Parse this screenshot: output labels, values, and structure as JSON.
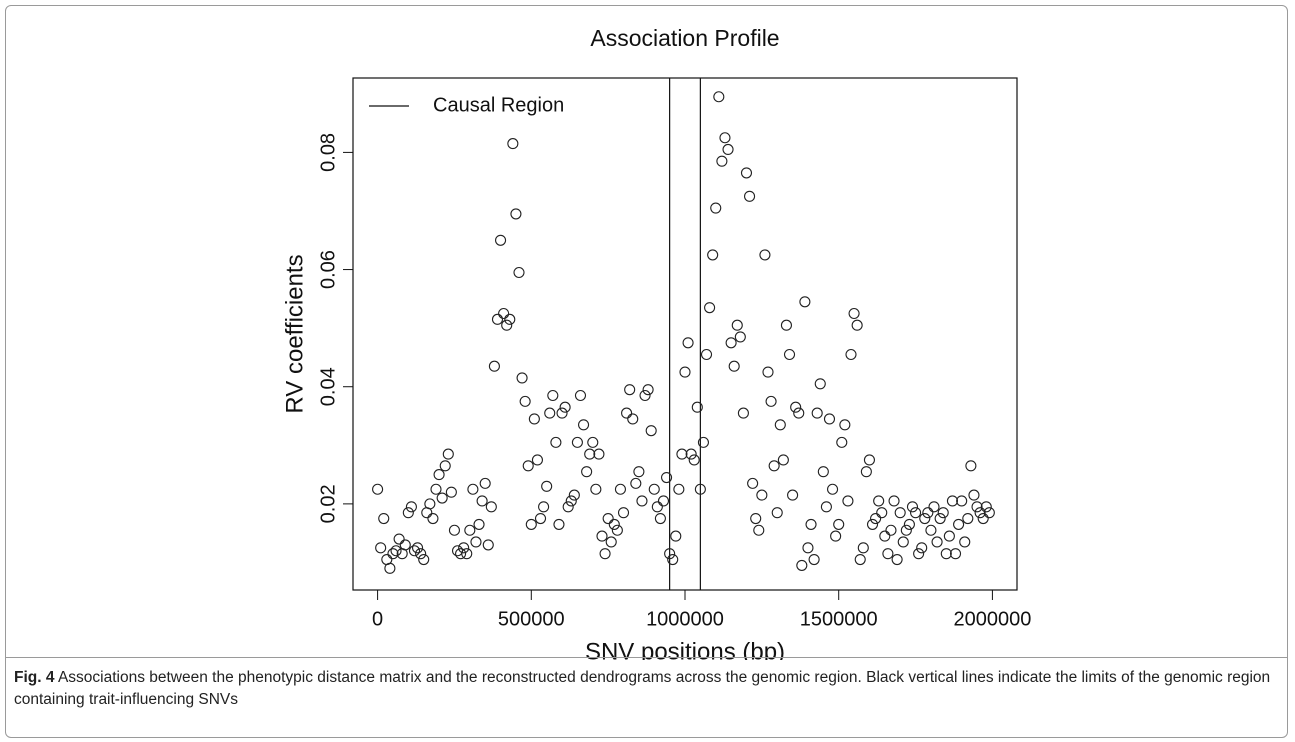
{
  "chart_data": {
    "type": "scatter",
    "title": "Association Profile",
    "x_label": "SNV positions (bp)",
    "y_label": "RV coefficients",
    "color": "#222222",
    "xlim": [
      -80000,
      2080000
    ],
    "ylim": [
      0.0053,
      0.0927
    ],
    "xticks": [
      0,
      500000,
      1000000,
      1500000,
      2000000
    ],
    "yticks": [
      0.02,
      0.04,
      0.06,
      0.08
    ],
    "legend": "top-left",
    "reference_lines": {
      "name": "Causal Region",
      "color": "#111111",
      "x": [
        950000,
        1050000
      ]
    },
    "x": [
      0,
      10000,
      20000,
      30000,
      40000,
      50000,
      60000,
      70000,
      80000,
      90000,
      100000,
      110000,
      120000,
      130000,
      140000,
      150000,
      160000,
      170000,
      180000,
      190000,
      200000,
      210000,
      220000,
      230000,
      240000,
      250000,
      260000,
      270000,
      280000,
      290000,
      300000,
      310000,
      320000,
      330000,
      340000,
      350000,
      360000,
      370000,
      380000,
      390000,
      400000,
      410000,
      420000,
      430000,
      440000,
      450000,
      460000,
      470000,
      480000,
      490000,
      500000,
      510000,
      520000,
      530000,
      540000,
      550000,
      560000,
      570000,
      580000,
      590000,
      600000,
      610000,
      620000,
      630000,
      640000,
      650000,
      660000,
      670000,
      680000,
      690000,
      700000,
      710000,
      720000,
      730000,
      740000,
      750000,
      760000,
      770000,
      780000,
      790000,
      800000,
      810000,
      820000,
      830000,
      840000,
      850000,
      860000,
      870000,
      880000,
      890000,
      900000,
      910000,
      920000,
      930000,
      940000,
      950000,
      960000,
      970000,
      980000,
      990000,
      1000000,
      1010000,
      1020000,
      1030000,
      1040000,
      1050000,
      1060000,
      1070000,
      1080000,
      1090000,
      1100000,
      1110000,
      1120000,
      1130000,
      1140000,
      1150000,
      1160000,
      1170000,
      1180000,
      1190000,
      1200000,
      1210000,
      1220000,
      1230000,
      1240000,
      1250000,
      1260000,
      1270000,
      1280000,
      1290000,
      1300000,
      1310000,
      1320000,
      1330000,
      1340000,
      1350000,
      1360000,
      1370000,
      1380000,
      1390000,
      1400000,
      1410000,
      1420000,
      1430000,
      1440000,
      1450000,
      1460000,
      1470000,
      1480000,
      1490000,
      1500000,
      1510000,
      1520000,
      1530000,
      1540000,
      1550000,
      1560000,
      1570000,
      1580000,
      1590000,
      1600000,
      1610000,
      1620000,
      1630000,
      1640000,
      1650000,
      1660000,
      1670000,
      1680000,
      1690000,
      1700000,
      1710000,
      1720000,
      1730000,
      1740000,
      1750000,
      1760000,
      1770000,
      1780000,
      1790000,
      1800000,
      1810000,
      1820000,
      1830000,
      1840000,
      1850000,
      1860000,
      1870000,
      1880000,
      1890000,
      1900000,
      1910000,
      1920000,
      1930000,
      1940000,
      1950000,
      1960000,
      1970000,
      1980000,
      1990000
    ],
    "values": [
      0.0225,
      0.0125,
      0.0175,
      0.0105,
      0.009,
      0.0115,
      0.012,
      0.014,
      0.0115,
      0.013,
      0.0185,
      0.0195,
      0.012,
      0.0125,
      0.0115,
      0.0105,
      0.0185,
      0.02,
      0.0175,
      0.0225,
      0.025,
      0.021,
      0.0265,
      0.0285,
      0.022,
      0.0155,
      0.012,
      0.0115,
      0.0125,
      0.0115,
      0.0155,
      0.0225,
      0.0135,
      0.0165,
      0.0205,
      0.0235,
      0.013,
      0.0195,
      0.0435,
      0.0515,
      0.065,
      0.0525,
      0.0505,
      0.0515,
      0.0815,
      0.0695,
      0.0595,
      0.0415,
      0.0375,
      0.0265,
      0.0165,
      0.0345,
      0.0275,
      0.0175,
      0.0195,
      0.023,
      0.0355,
      0.0385,
      0.0305,
      0.0165,
      0.0355,
      0.0365,
      0.0195,
      0.0205,
      0.0215,
      0.0305,
      0.0385,
      0.0335,
      0.0255,
      0.0285,
      0.0305,
      0.0225,
      0.0285,
      0.0145,
      0.0115,
      0.0175,
      0.0135,
      0.0165,
      0.0155,
      0.0225,
      0.0185,
      0.0355,
      0.0395,
      0.0345,
      0.0235,
      0.0255,
      0.0205,
      0.0385,
      0.0395,
      0.0325,
      0.0225,
      0.0195,
      0.0175,
      0.0205,
      0.0245,
      0.0115,
      0.0105,
      0.0145,
      0.0225,
      0.0285,
      0.0425,
      0.0475,
      0.0285,
      0.0275,
      0.0365,
      0.0225,
      0.0305,
      0.0455,
      0.0535,
      0.0625,
      0.0705,
      0.0895,
      0.0785,
      0.0825,
      0.0805,
      0.0475,
      0.0435,
      0.0505,
      0.0485,
      0.0355,
      0.0765,
      0.0725,
      0.0235,
      0.0175,
      0.0155,
      0.0215,
      0.0625,
      0.0425,
      0.0375,
      0.0265,
      0.0185,
      0.0335,
      0.0275,
      0.0505,
      0.0455,
      0.0215,
      0.0365,
      0.0355,
      0.0095,
      0.0545,
      0.0125,
      0.0165,
      0.0105,
      0.0355,
      0.0405,
      0.0255,
      0.0195,
      0.0345,
      0.0225,
      0.0145,
      0.0165,
      0.0305,
      0.0335,
      0.0205,
      0.0455,
      0.0525,
      0.0505,
      0.0105,
      0.0125,
      0.0255,
      0.0275,
      0.0165,
      0.0175,
      0.0205,
      0.0185,
      0.0145,
      0.0115,
      0.0155,
      0.0205,
      0.0105,
      0.0185,
      0.0135,
      0.0155,
      0.0165,
      0.0195,
      0.0185,
      0.0115,
      0.0125,
      0.0175,
      0.0185,
      0.0155,
      0.0195,
      0.0135,
      0.0175,
      0.0185,
      0.0115,
      0.0145,
      0.0205,
      0.0115,
      0.0165,
      0.0205,
      0.0135,
      0.0175,
      0.0265,
      0.0215,
      0.0195,
      0.0185,
      0.0175,
      0.0195,
      0.0185
    ]
  },
  "caption": {
    "label": "Fig. 4",
    "text": "Associations between the phenotypic distance matrix and the reconstructed dendrograms across the genomic region. Black vertical lines indicate the limits of the genomic region containing trait-influencing SNVs"
  }
}
